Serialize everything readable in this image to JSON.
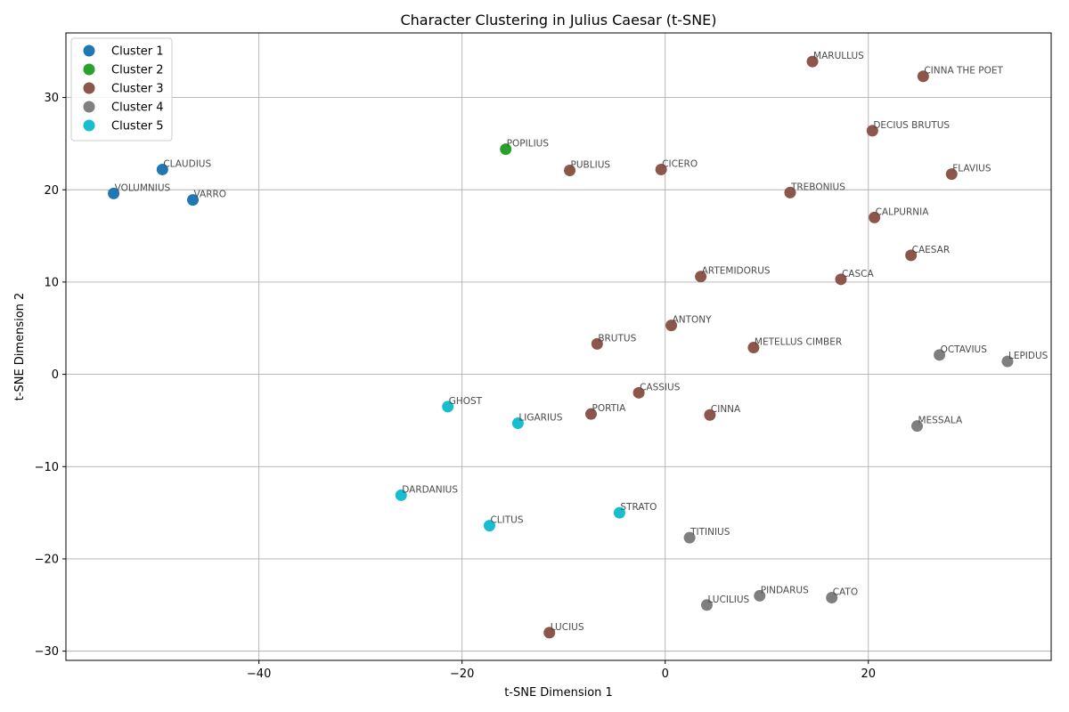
{
  "chart_data": {
    "type": "scatter",
    "title": "Character Clustering in Julius Caesar (t-SNE)",
    "xlabel": "t-SNE Dimension 1",
    "ylabel": "t-SNE Dimension 2",
    "xlim": [
      -59,
      38
    ],
    "ylim": [
      -31,
      37
    ],
    "xticks": [
      -40,
      -20,
      0,
      20
    ],
    "yticks": [
      -30,
      -20,
      -10,
      0,
      10,
      20,
      30
    ],
    "grid": true,
    "legend_position": "top-left",
    "series": [
      {
        "name": "Cluster 1",
        "color": "#1f77b4",
        "points": [
          {
            "label": "CLAUDIUS",
            "x": -49.5,
            "y": 22.2
          },
          {
            "label": "VOLUMNIUS",
            "x": -54.3,
            "y": 19.6
          },
          {
            "label": "VARRO",
            "x": -46.5,
            "y": 18.9
          }
        ]
      },
      {
        "name": "Cluster 2",
        "color": "#2ca02c",
        "points": [
          {
            "label": "POPILIUS",
            "x": -15.7,
            "y": 24.4
          }
        ]
      },
      {
        "name": "Cluster 3",
        "color": "#8c564b",
        "points": [
          {
            "label": "MARULLUS",
            "x": 14.5,
            "y": 33.9
          },
          {
            "label": "CINNA THE POET",
            "x": 25.4,
            "y": 32.3
          },
          {
            "label": "DECIUS BRUTUS",
            "x": 20.4,
            "y": 26.4
          },
          {
            "label": "PUBLIUS",
            "x": -9.4,
            "y": 22.1
          },
          {
            "label": "CICERO",
            "x": -0.4,
            "y": 22.2
          },
          {
            "label": "FLAVIUS",
            "x": 28.2,
            "y": 21.7
          },
          {
            "label": "TREBONIUS",
            "x": 12.3,
            "y": 19.7
          },
          {
            "label": "CALPURNIA",
            "x": 20.6,
            "y": 17.0
          },
          {
            "label": "CAESAR",
            "x": 24.2,
            "y": 12.9
          },
          {
            "label": "ARTEMIDORUS",
            "x": 3.5,
            "y": 10.6
          },
          {
            "label": "CASCA",
            "x": 17.3,
            "y": 10.3
          },
          {
            "label": "ANTONY",
            "x": 0.6,
            "y": 5.3
          },
          {
            "label": "BRUTUS",
            "x": -6.7,
            "y": 3.3
          },
          {
            "label": "METELLUS CIMBER",
            "x": 8.7,
            "y": 2.9
          },
          {
            "label": "CASSIUS",
            "x": -2.6,
            "y": -2.0
          },
          {
            "label": "PORTIA",
            "x": -7.3,
            "y": -4.3
          },
          {
            "label": "CINNA",
            "x": 4.4,
            "y": -4.4
          },
          {
            "label": "LUCIUS",
            "x": -11.4,
            "y": -28.0
          }
        ]
      },
      {
        "name": "Cluster 4",
        "color": "#7f7f7f",
        "points": [
          {
            "label": "OCTAVIUS",
            "x": 27.0,
            "y": 2.1
          },
          {
            "label": "LEPIDUS",
            "x": 33.7,
            "y": 1.4
          },
          {
            "label": "MESSALA",
            "x": 24.8,
            "y": -5.6
          },
          {
            "label": "TITINIUS",
            "x": 2.4,
            "y": -17.7
          },
          {
            "label": "PINDARUS",
            "x": 9.3,
            "y": -24.0
          },
          {
            "label": "CATO",
            "x": 16.4,
            "y": -24.2
          },
          {
            "label": "LUCILIUS",
            "x": 4.1,
            "y": -25.0
          }
        ]
      },
      {
        "name": "Cluster 5",
        "color": "#17becf",
        "points": [
          {
            "label": "GHOST",
            "x": -21.4,
            "y": -3.5
          },
          {
            "label": "LIGARIUS",
            "x": -14.5,
            "y": -5.3
          },
          {
            "label": "DARDANIUS",
            "x": -26.0,
            "y": -13.1
          },
          {
            "label": "STRATO",
            "x": -4.5,
            "y": -15.0
          },
          {
            "label": "CLITUS",
            "x": -17.3,
            "y": -16.4
          }
        ]
      }
    ]
  }
}
